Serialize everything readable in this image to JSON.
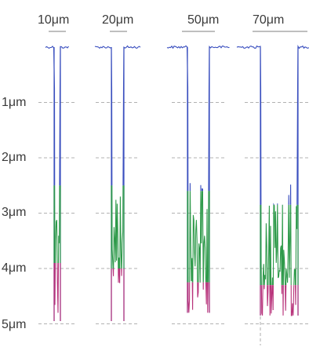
{
  "chart_data": {
    "type": "line",
    "title": "",
    "xlabel": "",
    "ylabel": "",
    "widths": [
      "10μm",
      "20μm",
      "50μm",
      "70μm"
    ],
    "depth_ticks": [
      "1μm",
      "2μm",
      "3μm",
      "4μm",
      "5μm"
    ],
    "depth_range_um": [
      0,
      5
    ],
    "grid": "dashed-horizontal",
    "colors": {
      "upper": "#3a4fbf",
      "middle": "#2e9a4a",
      "lower": "#b8327a",
      "scale": "#999999"
    },
    "series": [
      {
        "width_um": 10,
        "floor_depth_um": 4.95,
        "transition_depths_um": [
          2.5,
          3.9
        ],
        "roughness_um": 0.06
      },
      {
        "width_um": 20,
        "floor_depth_um": 4.95,
        "transition_depths_um": [
          2.5,
          4.0
        ],
        "roughness_um": 0.12
      },
      {
        "width_um": 50,
        "floor_depth_um": 4.8,
        "transition_depths_um": [
          2.6,
          4.25
        ],
        "roughness_um": 0.15
      },
      {
        "width_um": 70,
        "floor_depth_um": 4.85,
        "transition_depths_um": [
          2.85,
          4.3
        ],
        "roughness_um": 0.32
      }
    ]
  }
}
